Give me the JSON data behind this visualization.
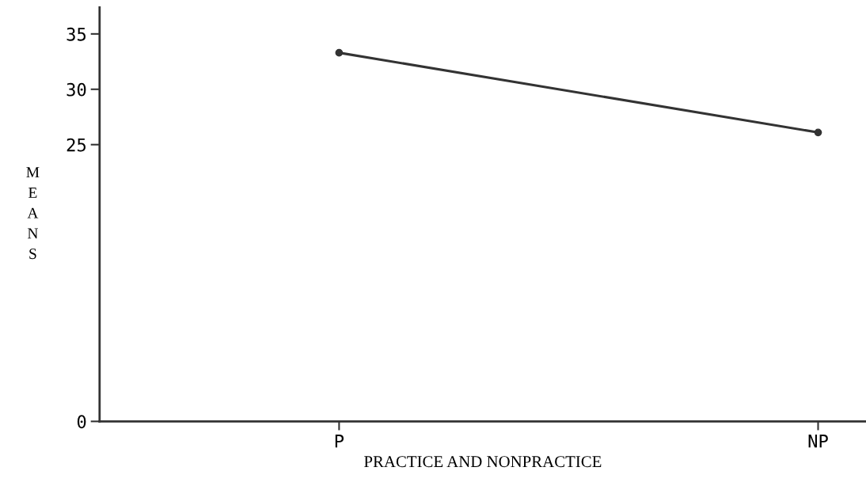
{
  "chart_data": {
    "type": "line",
    "xlabel": "PRACTICE AND NONPRACTICE",
    "ylabel": "MEANS",
    "categories": [
      "P",
      "NP"
    ],
    "series": [
      {
        "color": "#333333",
        "values": [
          33.3,
          26.1
        ]
      }
    ],
    "ylim": [
      0,
      37.4
    ],
    "yticks": [
      0,
      25,
      30,
      35
    ],
    "marker": "circle",
    "line_style": "solid"
  }
}
